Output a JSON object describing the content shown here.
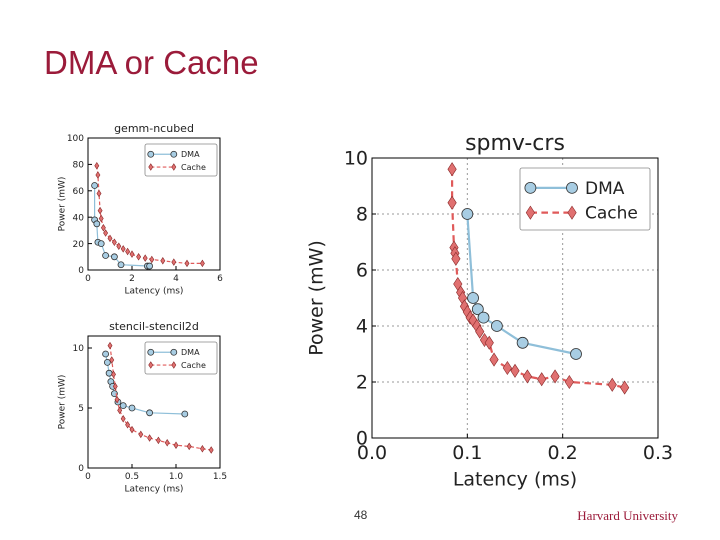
{
  "slide": {
    "title": "DMA or Cache",
    "page_number": "48",
    "institution": "Harvard University"
  },
  "colors": {
    "title": "#9b1b3a",
    "dma_line": "#8fbfd9",
    "dma_marker": "#a8cde3",
    "cache_line": "#e05a5a",
    "cache_marker": "#e07070",
    "grid": "#999999"
  },
  "chart_data": [
    {
      "id": "gemm",
      "type": "line",
      "title": "gemm-ncubed",
      "xlabel": "Latency (ms)",
      "ylabel": "Power (mW)",
      "xlim": [
        0,
        6
      ],
      "ylim": [
        0,
        100
      ],
      "xticks": [
        "0",
        "2",
        "4",
        "6"
      ],
      "yticks": [
        "0",
        "20",
        "40",
        "60",
        "80",
        "100"
      ],
      "grid": false,
      "legend": "top-right",
      "series": [
        {
          "name": "DMA",
          "x": [
            0.3,
            0.3,
            0.4,
            0.45,
            0.6,
            0.8,
            1.2,
            1.5,
            2.7,
            2.8
          ],
          "y": [
            64,
            38,
            35,
            21,
            20,
            11,
            10,
            4,
            3,
            3
          ]
        },
        {
          "name": "Cache",
          "x": [
            0.4,
            0.45,
            0.5,
            0.55,
            0.6,
            0.7,
            0.8,
            1.0,
            1.2,
            1.4,
            1.6,
            1.8,
            2.0,
            2.3,
            2.6,
            2.9,
            3.4,
            3.9,
            4.5,
            5.2
          ],
          "y": [
            79,
            72,
            58,
            45,
            39,
            32,
            28,
            24,
            21,
            18,
            16,
            14,
            12,
            10,
            9,
            8,
            7,
            6,
            5,
            5
          ]
        }
      ]
    },
    {
      "id": "stencil",
      "type": "line",
      "title": "stencil-stencil2d",
      "xlabel": "Latency (ms)",
      "ylabel": "Power (mW)",
      "xlim": [
        0,
        1.5
      ],
      "ylim": [
        0,
        11
      ],
      "xticks": [
        "0",
        "0.5",
        "1.0",
        "1.5"
      ],
      "yticks": [
        "0",
        "5",
        "10"
      ],
      "grid": false,
      "legend": "top-right",
      "series": [
        {
          "name": "DMA",
          "x": [
            0.2,
            0.22,
            0.24,
            0.26,
            0.28,
            0.3,
            0.34,
            0.4,
            0.5,
            0.7,
            1.1
          ],
          "y": [
            9.5,
            8.8,
            7.9,
            7.2,
            6.8,
            6.2,
            5.5,
            5.2,
            5.0,
            4.6,
            4.5
          ]
        },
        {
          "name": "Cache",
          "x": [
            0.25,
            0.27,
            0.29,
            0.31,
            0.33,
            0.36,
            0.4,
            0.45,
            0.5,
            0.6,
            0.7,
            0.8,
            0.9,
            1.0,
            1.15,
            1.3,
            1.4
          ],
          "y": [
            10.2,
            9.0,
            7.8,
            6.8,
            5.7,
            4.8,
            4.1,
            3.6,
            3.2,
            2.8,
            2.5,
            2.3,
            2.1,
            1.9,
            1.8,
            1.6,
            1.5
          ]
        }
      ]
    },
    {
      "id": "spmv",
      "type": "line",
      "title": "spmv-crs",
      "xlabel": "Latency (ms)",
      "ylabel": "Power (mW)",
      "xlim": [
        0,
        0.3
      ],
      "ylim": [
        0,
        10
      ],
      "xticks": [
        "0.0",
        "0.1",
        "0.2",
        "0.3"
      ],
      "yticks": [
        "0",
        "2",
        "4",
        "6",
        "8",
        "10"
      ],
      "grid": true,
      "legend": "top-right",
      "series": [
        {
          "name": "DMA",
          "x": [
            0.1,
            0.106,
            0.111,
            0.117,
            0.131,
            0.158,
            0.214
          ],
          "y": [
            8.0,
            5.0,
            4.6,
            4.3,
            4.0,
            3.4,
            3.0
          ]
        },
        {
          "name": "Cache",
          "x": [
            0.084,
            0.084,
            0.086,
            0.087,
            0.088,
            0.09,
            0.093,
            0.095,
            0.097,
            0.1,
            0.103,
            0.106,
            0.11,
            0.113,
            0.118,
            0.123,
            0.128,
            0.142,
            0.15,
            0.163,
            0.178,
            0.192,
            0.207,
            0.252,
            0.265
          ],
          "y": [
            9.6,
            8.4,
            6.8,
            6.6,
            6.4,
            5.5,
            5.2,
            5.0,
            4.7,
            4.5,
            4.3,
            4.2,
            4.0,
            3.8,
            3.5,
            3.4,
            2.8,
            2.5,
            2.4,
            2.2,
            2.1,
            2.2,
            2.0,
            1.9,
            1.8
          ]
        }
      ]
    }
  ]
}
